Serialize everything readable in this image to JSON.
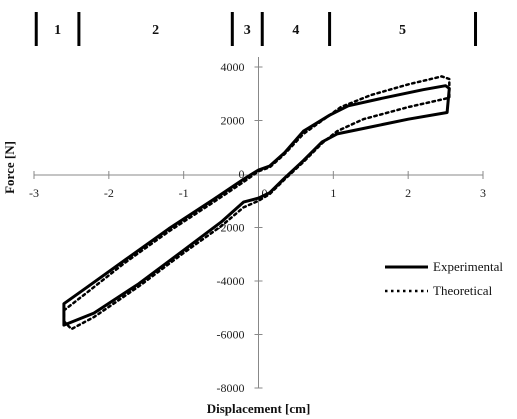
{
  "chart_data": {
    "type": "line",
    "title": "",
    "xlabel": "Displacement [cm]",
    "ylabel": "Force [N]",
    "xlim": [
      -3,
      3
    ],
    "ylim": [
      -8000,
      4000
    ],
    "xticks": [
      -3,
      -2,
      -1,
      0,
      1,
      2,
      3
    ],
    "yticks": [
      -8000,
      -6000,
      -4000,
      -2000,
      2000,
      4000
    ],
    "grid": false,
    "legend": "right",
    "regions": [
      {
        "label": "1",
        "x_start": -2.97,
        "x_end": -2.4
      },
      {
        "label": "2",
        "x_start": -2.4,
        "x_end": -0.35
      },
      {
        "label": "3",
        "x_start": -0.35,
        "x_end": 0.05
      },
      {
        "label": "4",
        "x_start": 0.05,
        "x_end": 0.95
      },
      {
        "label": "5",
        "x_start": 0.95,
        "x_end": 2.9
      }
    ],
    "series": [
      {
        "name": "Experimental",
        "style": "solid",
        "color": "#000000",
        "x": [
          -2.6,
          -2.6,
          -2.2,
          -1.6,
          -1.0,
          -0.5,
          -0.2,
          0.0,
          0.15,
          0.35,
          0.6,
          0.85,
          1.05,
          1.4,
          2.0,
          2.52,
          2.55,
          2.5,
          2.2,
          1.6,
          1.2,
          0.95,
          0.6,
          0.35,
          0.15,
          0.0,
          -0.2,
          -0.6,
          -1.2,
          -1.8,
          -2.3,
          -2.6
        ],
        "y": [
          -4850,
          -5650,
          -5200,
          -4100,
          -2850,
          -1800,
          -1050,
          -900,
          -700,
          -150,
          500,
          1200,
          1500,
          1700,
          2050,
          2300,
          3200,
          3300,
          3150,
          2800,
          2550,
          2200,
          1600,
          800,
          300,
          150,
          -200,
          -950,
          -2050,
          -3250,
          -4250,
          -4850
        ]
      },
      {
        "name": "Theoretical",
        "style": "dotted",
        "color": "#000000",
        "x": [
          -2.6,
          -2.5,
          -2.2,
          -1.6,
          -1.0,
          -0.5,
          -0.2,
          0.0,
          0.15,
          0.35,
          0.6,
          0.85,
          1.05,
          1.4,
          2.0,
          2.55,
          2.55,
          2.45,
          2.0,
          1.5,
          1.1,
          0.9,
          0.6,
          0.35,
          0.15,
          0.0,
          -0.2,
          -0.6,
          -1.2,
          -1.8,
          -2.3,
          -2.6
        ],
        "y": [
          -5500,
          -5800,
          -5350,
          -4200,
          -2950,
          -1950,
          -1250,
          -1000,
          -750,
          -200,
          450,
          1150,
          1600,
          2050,
          2500,
          2850,
          3550,
          3650,
          3350,
          2950,
          2500,
          2100,
          1500,
          750,
          250,
          100,
          -300,
          -1050,
          -2150,
          -3350,
          -4450,
          -5100
        ]
      }
    ]
  }
}
